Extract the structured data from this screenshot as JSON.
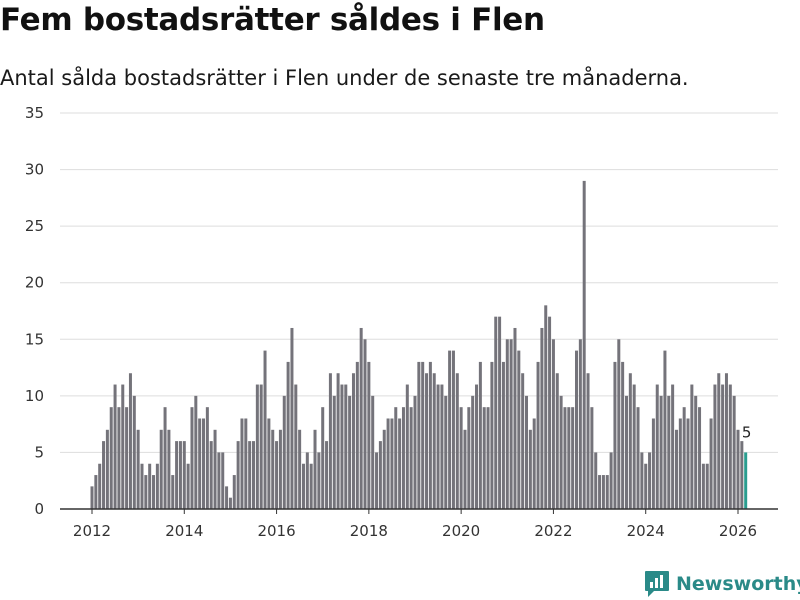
{
  "title": "Fem bostadsrätter såldes i Flen",
  "subtitle": "Antal sålda bostadsrätter i Flen under de senaste tre månaderna.",
  "brand": {
    "name": "Newsworthy",
    "icon": "newsworthy-logo-icon"
  },
  "colors": {
    "bar": "#74737a",
    "highlight": "#2a9d8f",
    "grid": "#dddddd",
    "axis": "#333333",
    "brand": "#2a8a88"
  },
  "chart_data": {
    "type": "bar",
    "title": "Fem bostadsrätter såldes i Flen",
    "subtitle": "Antal sålda bostadsrätter i Flen under de senaste tre månaderna.",
    "xlabel": "",
    "ylabel": "",
    "ylim": [
      0,
      35
    ],
    "yticks": [
      0,
      5,
      10,
      15,
      20,
      25,
      30,
      35
    ],
    "xticks": [
      2012,
      2014,
      2016,
      2018,
      2020,
      2022,
      2024,
      2026
    ],
    "x_start": 2012.0,
    "x_step_years": 0.0833333,
    "grid": true,
    "highlight_last": true,
    "last_value_label": "5",
    "values": [
      2,
      3,
      4,
      6,
      7,
      9,
      11,
      9,
      11,
      9,
      12,
      10,
      7,
      4,
      3,
      4,
      3,
      4,
      7,
      9,
      7,
      3,
      6,
      6,
      6,
      4,
      9,
      10,
      8,
      8,
      9,
      6,
      7,
      5,
      5,
      2,
      1,
      3,
      6,
      8,
      8,
      6,
      6,
      11,
      11,
      14,
      8,
      7,
      6,
      7,
      10,
      13,
      16,
      11,
      7,
      4,
      5,
      4,
      7,
      5,
      9,
      6,
      12,
      10,
      12,
      11,
      11,
      10,
      12,
      13,
      16,
      15,
      13,
      10,
      5,
      6,
      7,
      8,
      8,
      9,
      8,
      9,
      11,
      9,
      10,
      13,
      13,
      12,
      13,
      12,
      11,
      11,
      10,
      14,
      14,
      12,
      9,
      7,
      9,
      10,
      11,
      13,
      9,
      9,
      13,
      17,
      17,
      13,
      15,
      15,
      16,
      14,
      12,
      10,
      7,
      8,
      13,
      16,
      18,
      17,
      15,
      12,
      10,
      9,
      9,
      9,
      14,
      15,
      29,
      12,
      9,
      5,
      3,
      3,
      3,
      5,
      13,
      15,
      13,
      10,
      12,
      11,
      9,
      5,
      4,
      5,
      8,
      11,
      10,
      14,
      10,
      11,
      7,
      8,
      9,
      8,
      11,
      10,
      9,
      4,
      4,
      8,
      11,
      12,
      11,
      12,
      11,
      10,
      7,
      6,
      5
    ]
  }
}
